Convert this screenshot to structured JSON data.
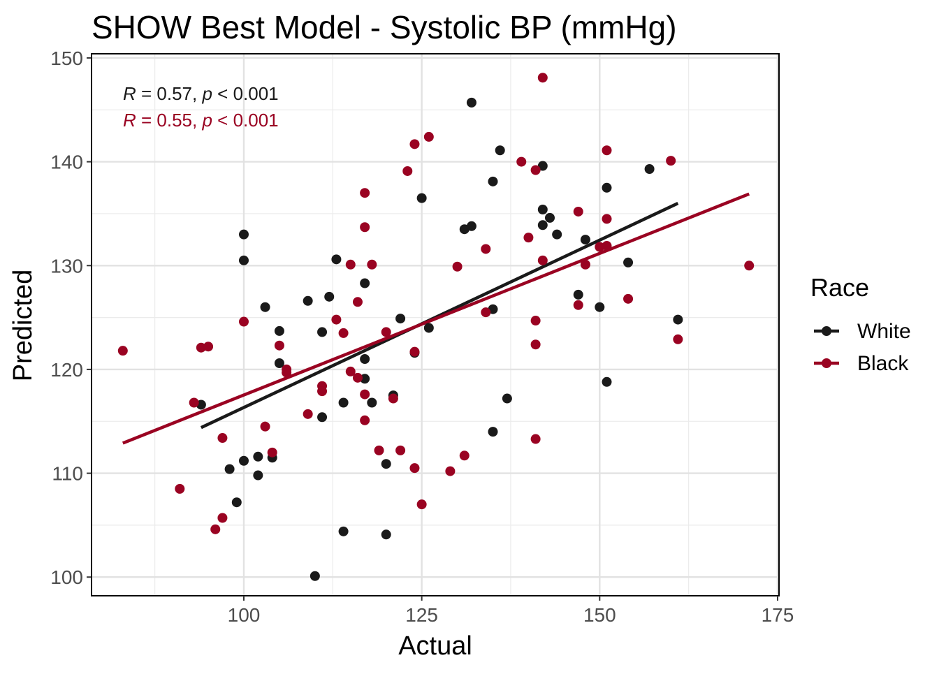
{
  "chart_data": {
    "type": "scatter",
    "title": "SHOW Best Model - Systolic BP (mmHg)",
    "xlabel": "Actual",
    "ylabel": "Predicted",
    "xlim": [
      78.6,
      175.2
    ],
    "ylim": [
      98.2,
      150.4
    ],
    "xticks": [
      100,
      125,
      150,
      175
    ],
    "yticks": [
      100,
      110,
      120,
      130,
      140,
      150
    ],
    "grid": true,
    "legend": {
      "title": "Race",
      "position": "right",
      "entries": [
        {
          "name": "White",
          "color": "#1a1a1a"
        },
        {
          "name": "Black",
          "color": "#9a0322"
        }
      ]
    },
    "annotations": [
      {
        "R": "0.57",
        "p": "0.001",
        "color": "#1a1a1a"
      },
      {
        "R": "0.55",
        "p": "0.001",
        "color": "#9a0322"
      }
    ],
    "series": [
      {
        "name": "White",
        "color": "#1a1a1a",
        "fit": {
          "x": [
            94,
            161
          ],
          "y": [
            114.4,
            136.0
          ]
        },
        "points": [
          [
            94,
            116.6
          ],
          [
            98,
            110.4
          ],
          [
            99,
            107.2
          ],
          [
            100,
            133.0
          ],
          [
            100,
            130.5
          ],
          [
            100,
            111.2
          ],
          [
            102,
            111.6
          ],
          [
            102,
            109.8
          ],
          [
            103,
            126.0
          ],
          [
            104,
            111.5
          ],
          [
            105,
            123.7
          ],
          [
            105,
            120.6
          ],
          [
            109,
            126.6
          ],
          [
            110,
            100.1
          ],
          [
            111,
            123.6
          ],
          [
            111,
            115.4
          ],
          [
            112,
            127.0
          ],
          [
            113,
            130.6
          ],
          [
            114,
            116.8
          ],
          [
            114,
            104.4
          ],
          [
            117,
            128.3
          ],
          [
            117,
            121.0
          ],
          [
            117,
            119.1
          ],
          [
            118,
            116.8
          ],
          [
            120,
            104.1
          ],
          [
            120,
            110.9
          ],
          [
            121,
            117.5
          ],
          [
            122,
            124.9
          ],
          [
            124,
            121.6
          ],
          [
            125,
            136.5
          ],
          [
            126,
            124.0
          ],
          [
            131,
            133.5
          ],
          [
            132,
            133.8
          ],
          [
            132,
            145.7
          ],
          [
            135,
            138.1
          ],
          [
            135,
            125.8
          ],
          [
            135,
            114.0
          ],
          [
            136,
            141.1
          ],
          [
            137,
            117.2
          ],
          [
            142,
            139.6
          ],
          [
            142,
            135.4
          ],
          [
            142,
            133.9
          ],
          [
            143,
            134.6
          ],
          [
            144,
            133.0
          ],
          [
            147,
            127.2
          ],
          [
            148,
            132.5
          ],
          [
            150,
            126.0
          ],
          [
            151,
            137.5
          ],
          [
            151,
            118.8
          ],
          [
            154,
            130.3
          ],
          [
            157,
            139.3
          ],
          [
            161,
            124.8
          ]
        ]
      },
      {
        "name": "Black",
        "color": "#9a0322",
        "fit": {
          "x": [
            83,
            171
          ],
          "y": [
            112.9,
            136.9
          ]
        },
        "points": [
          [
            83,
            121.8
          ],
          [
            91,
            108.5
          ],
          [
            93,
            116.8
          ],
          [
            94,
            122.1
          ],
          [
            95,
            122.2
          ],
          [
            96,
            104.6
          ],
          [
            97,
            113.4
          ],
          [
            97,
            105.7
          ],
          [
            100,
            124.6
          ],
          [
            103,
            114.5
          ],
          [
            104,
            112.0
          ],
          [
            105,
            122.3
          ],
          [
            106,
            120.0
          ],
          [
            106,
            119.7
          ],
          [
            109,
            115.7
          ],
          [
            111,
            118.4
          ],
          [
            111,
            117.9
          ],
          [
            113,
            124.8
          ],
          [
            114,
            123.5
          ],
          [
            115,
            130.1
          ],
          [
            115,
            119.8
          ],
          [
            116,
            126.5
          ],
          [
            116,
            119.2
          ],
          [
            117,
            137.0
          ],
          [
            117,
            133.7
          ],
          [
            117,
            117.6
          ],
          [
            117,
            115.1
          ],
          [
            118,
            130.1
          ],
          [
            119,
            112.2
          ],
          [
            120,
            123.6
          ],
          [
            121,
            117.2
          ],
          [
            122,
            112.2
          ],
          [
            123,
            139.1
          ],
          [
            124,
            141.7
          ],
          [
            124,
            121.7
          ],
          [
            124,
            110.5
          ],
          [
            125,
            107.0
          ],
          [
            126,
            142.4
          ],
          [
            129,
            110.2
          ],
          [
            130,
            129.9
          ],
          [
            131,
            111.7
          ],
          [
            134,
            131.6
          ],
          [
            134,
            125.5
          ],
          [
            139,
            140.0
          ],
          [
            140,
            132.7
          ],
          [
            141,
            139.2
          ],
          [
            141,
            124.7
          ],
          [
            141,
            122.4
          ],
          [
            141,
            113.3
          ],
          [
            142,
            148.1
          ],
          [
            142,
            130.5
          ],
          [
            147,
            135.2
          ],
          [
            147,
            126.2
          ],
          [
            148,
            130.1
          ],
          [
            150,
            131.8
          ],
          [
            151,
            141.1
          ],
          [
            151,
            134.5
          ],
          [
            151,
            131.9
          ],
          [
            154,
            126.8
          ],
          [
            160,
            140.1
          ],
          [
            161,
            122.9
          ],
          [
            171,
            130.0
          ]
        ]
      }
    ]
  }
}
